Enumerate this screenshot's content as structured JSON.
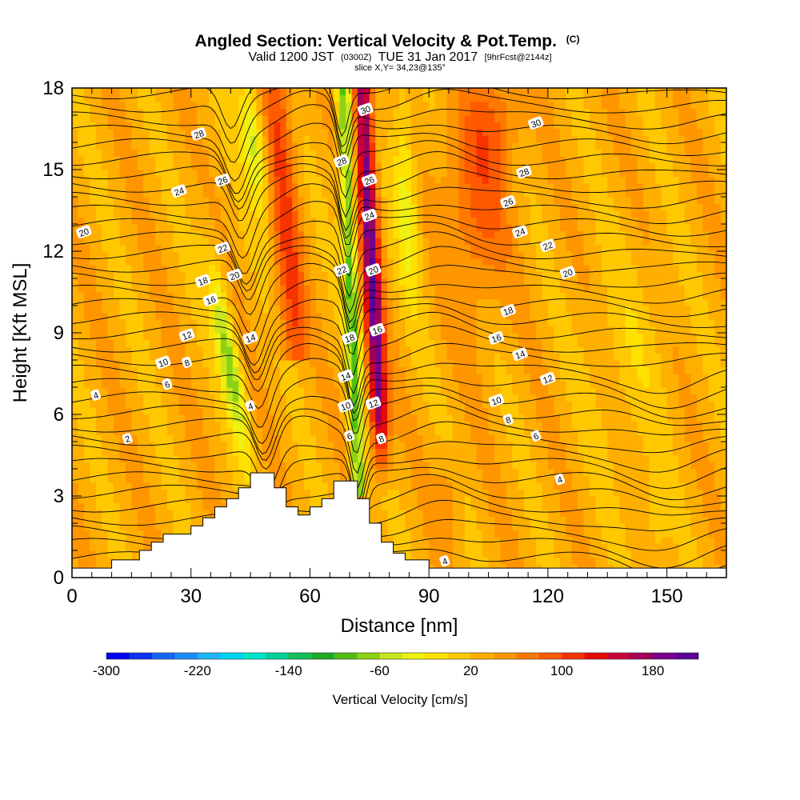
{
  "chart_data": {
    "type": "heatmap",
    "title": {
      "main": "Angled Section: Vertical Velocity & Pot.Temp.",
      "units": "(C)"
    },
    "subtitle": {
      "valid": "Valid 1200 JST",
      "utc": "(0300Z)",
      "date": "TUE 31 Jan 2017",
      "forecast": "[9hrFcst@2144z]",
      "slice": "slice X,Y= 34,23@135°"
    },
    "xlabel": "Distance [nm]",
    "ylabel": "Height [Kft MSL]",
    "xlim": [
      0,
      165
    ],
    "ylim": [
      0,
      18
    ],
    "x_ticks": [
      "0",
      "30",
      "60",
      "90",
      "120",
      "150"
    ],
    "y_ticks": [
      "0",
      "3",
      "6",
      "9",
      "12",
      "15",
      "18"
    ],
    "colorbar": {
      "label": "Vertical Velocity [cm/s]",
      "tick_labels": [
        "-300",
        "-220",
        "-140",
        "-60",
        "20",
        "100",
        "180"
      ],
      "levels": [
        -300,
        220
      ],
      "step": 20,
      "colors": [
        "#0000ee",
        "#0a32f0",
        "#1464f5",
        "#1e8cfa",
        "#1eb4ff",
        "#00d2f0",
        "#00e6c8",
        "#00d296",
        "#14be5a",
        "#1eaa28",
        "#50be14",
        "#8cd214",
        "#c8e61e",
        "#f0f014",
        "#ffe100",
        "#ffc800",
        "#ffaf00",
        "#ff9600",
        "#ff7800",
        "#ff5a00",
        "#f53200",
        "#e60a0a",
        "#c8003c",
        "#a0005a",
        "#78008c",
        "#5a0096"
      ]
    },
    "theta_contour_labels": [
      {
        "text": "2",
        "x": 14,
        "y": 5.1
      },
      {
        "text": "4",
        "x": 6,
        "y": 6.7
      },
      {
        "text": "4",
        "x": 45,
        "y": 6.3
      },
      {
        "text": "6",
        "x": 24,
        "y": 7.1
      },
      {
        "text": "8",
        "x": 29,
        "y": 7.9
      },
      {
        "text": "10",
        "x": 23,
        "y": 7.9
      },
      {
        "text": "12",
        "x": 29,
        "y": 8.9
      },
      {
        "text": "14",
        "x": 45,
        "y": 8.8
      },
      {
        "text": "16",
        "x": 35,
        "y": 10.2
      },
      {
        "text": "18",
        "x": 33,
        "y": 10.9
      },
      {
        "text": "20",
        "x": 3,
        "y": 12.7
      },
      {
        "text": "20",
        "x": 41,
        "y": 11.1
      },
      {
        "text": "22",
        "x": 38,
        "y": 12.1
      },
      {
        "text": "24",
        "x": 27,
        "y": 14.2
      },
      {
        "text": "26",
        "x": 38,
        "y": 14.6
      },
      {
        "text": "28",
        "x": 32,
        "y": 16.3
      },
      {
        "text": "28",
        "x": 68,
        "y": 15.3
      },
      {
        "text": "30",
        "x": 74,
        "y": 17.2
      },
      {
        "text": "26",
        "x": 75,
        "y": 14.6
      },
      {
        "text": "24",
        "x": 75,
        "y": 13.3
      },
      {
        "text": "22",
        "x": 68,
        "y": 11.3
      },
      {
        "text": "20",
        "x": 76,
        "y": 11.3
      },
      {
        "text": "18",
        "x": 70,
        "y": 8.8
      },
      {
        "text": "16",
        "x": 77,
        "y": 9.1
      },
      {
        "text": "14",
        "x": 69,
        "y": 7.4
      },
      {
        "text": "12",
        "x": 76,
        "y": 6.4
      },
      {
        "text": "10",
        "x": 69,
        "y": 6.3
      },
      {
        "text": "8",
        "x": 78,
        "y": 5.1
      },
      {
        "text": "6",
        "x": 70,
        "y": 5.2
      },
      {
        "text": "4",
        "x": 94,
        "y": 0.6
      },
      {
        "text": "30",
        "x": 117,
        "y": 16.7
      },
      {
        "text": "28",
        "x": 114,
        "y": 14.9
      },
      {
        "text": "26",
        "x": 110,
        "y": 13.8
      },
      {
        "text": "24",
        "x": 113,
        "y": 12.7
      },
      {
        "text": "22",
        "x": 120,
        "y": 12.2
      },
      {
        "text": "20",
        "x": 125,
        "y": 11.2
      },
      {
        "text": "18",
        "x": 110,
        "y": 9.8
      },
      {
        "text": "16",
        "x": 107,
        "y": 8.8
      },
      {
        "text": "14",
        "x": 113,
        "y": 8.2
      },
      {
        "text": "12",
        "x": 120,
        "y": 7.3
      },
      {
        "text": "10",
        "x": 107,
        "y": 6.5
      },
      {
        "text": "8",
        "x": 110,
        "y": 5.8
      },
      {
        "text": "6",
        "x": 117,
        "y": 5.2
      },
      {
        "text": "4",
        "x": 123,
        "y": 3.6
      }
    ],
    "terrain_profile": {
      "x": [
        0,
        10,
        10,
        17,
        17,
        20,
        20,
        23,
        23,
        30,
        30,
        33,
        33,
        36,
        36,
        39,
        39,
        42,
        42,
        45,
        45,
        51,
        51,
        54,
        54,
        57,
        57,
        60,
        60,
        63,
        63,
        66,
        66,
        72,
        72,
        75,
        75,
        78,
        78,
        81,
        81,
        84,
        84,
        90,
        90,
        165
      ],
      "y": [
        0.35,
        0.35,
        0.65,
        0.65,
        1.0,
        1.0,
        1.3,
        1.3,
        1.6,
        1.6,
        1.9,
        1.9,
        2.2,
        2.2,
        2.6,
        2.6,
        2.9,
        2.9,
        3.3,
        3.3,
        3.85,
        3.85,
        3.3,
        3.3,
        2.6,
        2.6,
        2.3,
        2.3,
        2.6,
        2.6,
        2.9,
        2.9,
        3.55,
        3.55,
        2.9,
        2.9,
        2.0,
        2.0,
        1.3,
        1.3,
        0.9,
        0.9,
        0.65,
        0.65,
        0.35,
        0.35
      ]
    }
  }
}
